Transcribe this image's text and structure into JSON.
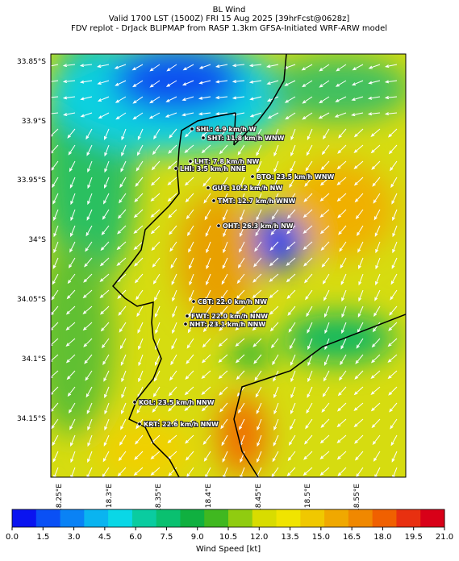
{
  "header": {
    "title": "BL Wind",
    "subtitle": "Valid 1700 LST (1500Z) FRI 15 Aug 2025 [39hrFcst@0628z]",
    "source": "FDV replot - DrJack BLIPMAP from RASP 1.3km GFSA-Initiated WRF-ARW model"
  },
  "map": {
    "lat_labels": [
      "33.85°S",
      "33.9°S",
      "33.95°S",
      "34°S",
      "34.05°S",
      "34.1°S",
      "34.15°S"
    ],
    "lon_labels": [
      "18.25°E",
      "18.3°E",
      "18.35°E",
      "18.4°E",
      "18.45°E",
      "18.5°E",
      "18.55°E"
    ],
    "stations": [
      "SHL: 4.9 km/h W",
      "SHT: 11.8 km/h WNW",
      "LHT: 7.8 km/h NW",
      "LHI: 3.5 km/h NNE",
      "BTO: 23.5 km/h WNW",
      "GUT: 10.2 km/h NW",
      "TMT: 12.7 km/h WNW",
      "OHT: 26.3 km/h NW",
      "CBT: 22.0 km/h NW",
      "FWT: 22.0 km/h NNW",
      "NHT: 23.1 km/h NNW",
      "KOL: 23.5 km/h NNW",
      "KRT: 22.6 km/h NNW"
    ]
  },
  "colorbar": {
    "label": "Wind Speed [kt]",
    "range": [
      0,
      21
    ],
    "colors": [
      "#0a14f0",
      "#0a50f5",
      "#0a82f5",
      "#0ab4f0",
      "#0ad7e6",
      "#0acca0",
      "#0ac070",
      "#10b040",
      "#40b820",
      "#90cc10",
      "#d8dc00",
      "#f0e400",
      "#f0c800",
      "#f0a800",
      "#f08800",
      "#f06000",
      "#e83010",
      "#d80018"
    ],
    "ticks": [
      {
        "value": 0,
        "label": "0.0"
      },
      {
        "value": 1.5,
        "label": "1.5"
      },
      {
        "value": 3,
        "label": "3.0"
      },
      {
        "value": 4.5,
        "label": "4.5"
      },
      {
        "value": 6,
        "label": "6.0"
      },
      {
        "value": 7.5,
        "label": "7.5"
      },
      {
        "value": 9,
        "label": "9.0"
      },
      {
        "value": 10.5,
        "label": "10.5"
      },
      {
        "value": 12,
        "label": "12.0"
      },
      {
        "value": 13.5,
        "label": "13.5"
      },
      {
        "value": 15,
        "label": "15.0"
      },
      {
        "value": 16.5,
        "label": "16.5"
      },
      {
        "value": 18,
        "label": "18.0"
      },
      {
        "value": 19.5,
        "label": "19.5"
      },
      {
        "value": 21,
        "label": "21.0"
      }
    ]
  }
}
